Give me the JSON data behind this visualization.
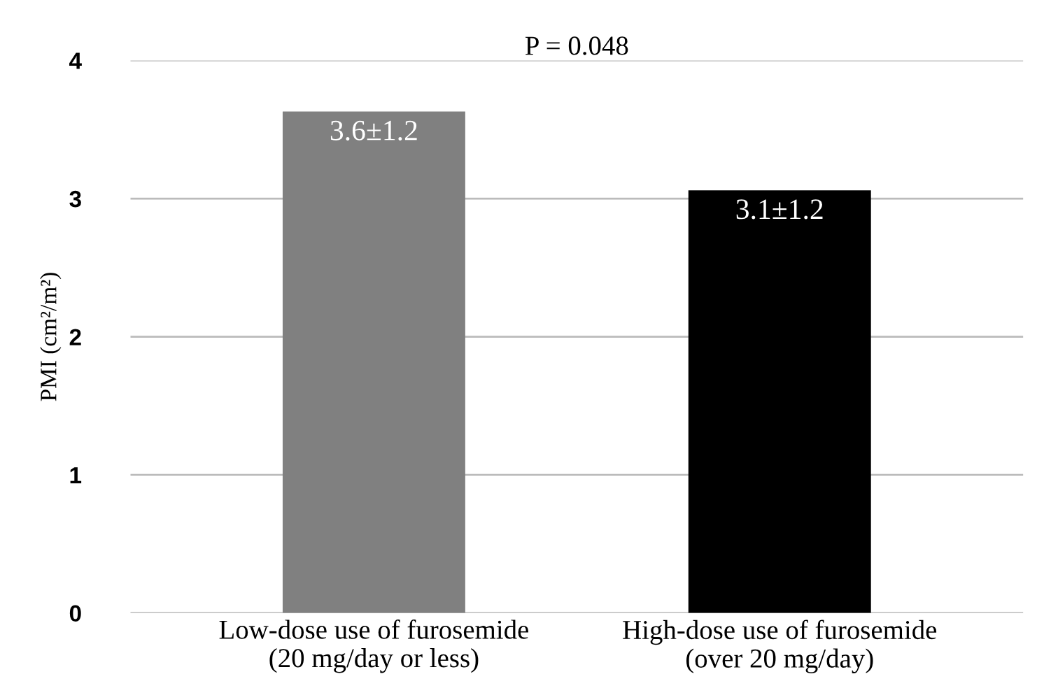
{
  "chart_data": {
    "type": "bar",
    "title": "P = 0.048",
    "ylabel": "PMI (cm²/m²)",
    "categories": [
      "Low-dose use of furosemide\n(20 mg/day or less)",
      "High-dose use of furosemide\n(over 20 mg/day)"
    ],
    "values": [
      3.63,
      3.06
    ],
    "colors": [
      "#808080",
      "#000000"
    ],
    "value_labels": [
      "3.6±1.2",
      "3.1±1.2"
    ],
    "ylim": [
      0,
      4
    ],
    "yticks": [
      0,
      1,
      2,
      3,
      4
    ],
    "grid": "y",
    "legend": false
  }
}
